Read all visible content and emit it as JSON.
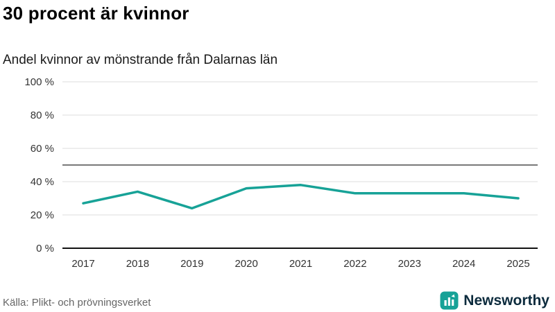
{
  "chart": {
    "title": "30 procent är kvinnor",
    "subtitle": "Andel kvinnor av mönstrande från Dalarnas län",
    "source": "Källa: Plikt- och prövningsverket",
    "brand": {
      "name": "Newsworthy"
    },
    "colors": {
      "line": "#17a297",
      "reference": "#4d4d4d",
      "grid": "#dcdcdc",
      "axis": "#111111",
      "tick_text": "#333333",
      "brand_text": "#0c2b3d"
    }
  },
  "chart_data": {
    "type": "line",
    "series_name": "Andel kvinnor av mönstrande",
    "x": [
      2017,
      2018,
      2019,
      2020,
      2021,
      2022,
      2023,
      2024,
      2025
    ],
    "values": [
      27,
      34,
      24,
      36,
      38,
      33,
      33,
      33,
      30
    ],
    "ylim": [
      0,
      100
    ],
    "yticks": [
      0,
      20,
      40,
      60,
      80,
      100
    ],
    "ytick_suffix": " %",
    "reference_line": 50,
    "grid": true,
    "legend": false
  }
}
